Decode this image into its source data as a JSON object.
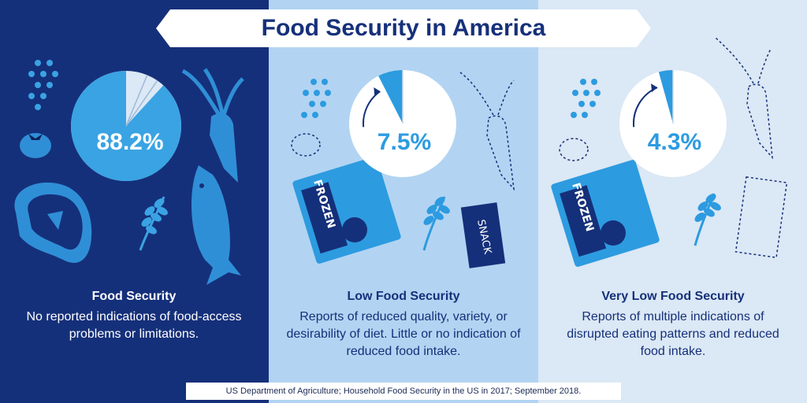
{
  "title": "Food Security in America",
  "chart_data": [
    {
      "type": "pie",
      "title": "Food Security",
      "value": 88.2,
      "value_label": "88.2%",
      "description": "No reported indications of food-access problems or limitations.",
      "color": "#3aa3e3"
    },
    {
      "type": "pie",
      "title": "Low Food Security",
      "value": 7.5,
      "value_label": "7.5%",
      "description": "Reports of reduced quality, variety, or desirability of diet. Little or no indication of reduced food intake.",
      "color": "#2d9be0"
    },
    {
      "type": "pie",
      "title": "Very Low Food Security",
      "value": 4.3,
      "value_label": "4.3%",
      "description": "Reports of multiple indications of disrupted eating patterns and reduced food intake.",
      "color": "#2d9be0"
    }
  ],
  "labels": {
    "frozen": "FROZEN",
    "snack": "SNACK"
  },
  "source": "US Department of Agriculture; Household Food Security in the US in 2017; September 2018.",
  "colors": {
    "navy": "#15307a",
    "mid_blue": "#b2d4f2",
    "pale_blue": "#dbe8f5",
    "accent": "#3aa3e3"
  }
}
